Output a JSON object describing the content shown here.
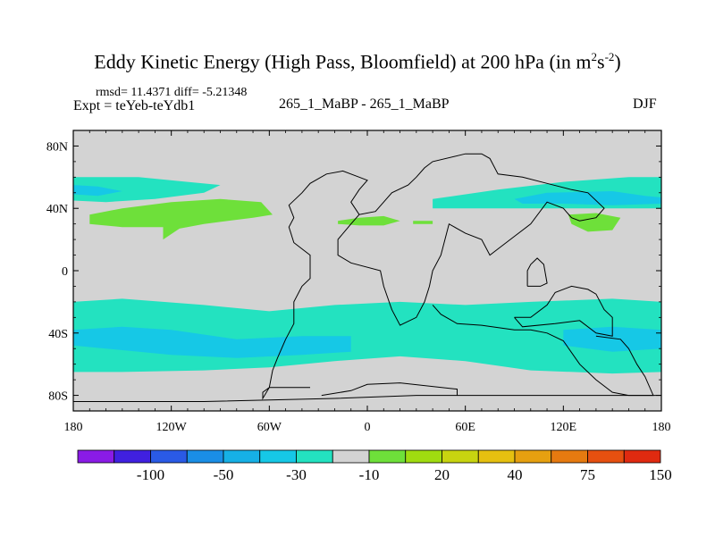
{
  "header": {
    "title_main": "Eddy Kinetic Energy (High Pass, Bloomfield) at 200 hPa (in m",
    "title_sup1": "2",
    "title_s": "s",
    "title_sup2": "-2",
    "title_close": ")",
    "rmsd_line": "rmsd= 11.4371 diff= -5.21348",
    "expt_line": "Expt = teYeb-teYdb1",
    "center_label": "265_1_MaBP - 265_1_MaBP",
    "season": "DJF"
  },
  "colors": {
    "background_field": "#d3d3d3",
    "green": "#6ee03a",
    "cyan": "#23e2c0",
    "light_blue": "#16c8e6",
    "coast": "#000000"
  },
  "chart_data": {
    "type": "heatmap",
    "projection": "cylindrical equidistant",
    "xlim": [
      -180,
      180
    ],
    "ylim": [
      -90,
      90
    ],
    "x_ticks": [
      {
        "value": -180,
        "label": "180"
      },
      {
        "value": -120,
        "label": "120W"
      },
      {
        "value": -60,
        "label": "60W"
      },
      {
        "value": 0,
        "label": "0"
      },
      {
        "value": 60,
        "label": "60E"
      },
      {
        "value": 120,
        "label": "120E"
      },
      {
        "value": 180,
        "label": "180"
      }
    ],
    "y_ticks": [
      {
        "value": 80,
        "label": "80N"
      },
      {
        "value": 40,
        "label": "40N"
      },
      {
        "value": 0,
        "label": "0"
      },
      {
        "value": -40,
        "label": "40S"
      },
      {
        "value": -80,
        "label": "80S"
      }
    ],
    "colorbar": {
      "colors": [
        "#8a1be6",
        "#4020e0",
        "#2a5ae6",
        "#1a8ee6",
        "#16b0e6",
        "#16c8e6",
        "#23e2c0",
        "#d3d3d3",
        "#6ee03a",
        "#a0dc10",
        "#c8d410",
        "#e6c010",
        "#e6a010",
        "#e67a10",
        "#e65010",
        "#e02a10"
      ],
      "labels": [
        {
          "index": 2,
          "text": "-100"
        },
        {
          "index": 4,
          "text": "-50"
        },
        {
          "index": 6,
          "text": "-30"
        },
        {
          "index": 8,
          "text": "-10"
        },
        {
          "index": 10,
          "text": "20"
        },
        {
          "index": 12,
          "text": "40"
        },
        {
          "index": 14,
          "text": "75"
        },
        {
          "index": 16,
          "text": "150"
        }
      ]
    },
    "regions": [
      {
        "level": "-10",
        "color": "cyan",
        "points": [
          [
            -180,
            -20
          ],
          [
            -150,
            -18
          ],
          [
            -100,
            -22
          ],
          [
            -60,
            -26
          ],
          [
            -20,
            -22
          ],
          [
            20,
            -20
          ],
          [
            60,
            -22
          ],
          [
            100,
            -20
          ],
          [
            150,
            -18
          ],
          [
            180,
            -20
          ],
          [
            180,
            -65
          ],
          [
            150,
            -66
          ],
          [
            100,
            -64
          ],
          [
            60,
            -58
          ],
          [
            20,
            -55
          ],
          [
            -20,
            -58
          ],
          [
            -60,
            -62
          ],
          [
            -100,
            -64
          ],
          [
            -150,
            -65
          ],
          [
            -180,
            -65
          ]
        ]
      },
      {
        "level": "-20",
        "color": "light_blue",
        "points": [
          [
            -180,
            -38
          ],
          [
            -150,
            -36
          ],
          [
            -120,
            -38
          ],
          [
            -80,
            -44
          ],
          [
            -40,
            -42
          ],
          [
            -10,
            -42
          ],
          [
            -10,
            -52
          ],
          [
            -40,
            -54
          ],
          [
            -80,
            -56
          ],
          [
            -120,
            -54
          ],
          [
            -160,
            -50
          ],
          [
            -180,
            -48
          ]
        ]
      },
      {
        "level": "-20",
        "color": "light_blue",
        "points": [
          [
            120,
            -38
          ],
          [
            150,
            -36
          ],
          [
            180,
            -38
          ],
          [
            180,
            -50
          ],
          [
            150,
            -52
          ],
          [
            120,
            -48
          ]
        ]
      },
      {
        "level": "-10",
        "color": "cyan",
        "points": [
          [
            -180,
            60
          ],
          [
            -140,
            60
          ],
          [
            -110,
            57
          ],
          [
            -90,
            55
          ],
          [
            -100,
            50
          ],
          [
            -130,
            46
          ],
          [
            -160,
            44
          ],
          [
            -180,
            45
          ]
        ]
      },
      {
        "level": "-20",
        "color": "light_blue",
        "points": [
          [
            -180,
            55
          ],
          [
            -165,
            54
          ],
          [
            -150,
            51
          ],
          [
            -165,
            48
          ],
          [
            -180,
            49
          ]
        ]
      },
      {
        "level": "-10",
        "color": "cyan",
        "points": [
          [
            40,
            46
          ],
          [
            80,
            52
          ],
          [
            120,
            57
          ],
          [
            160,
            60
          ],
          [
            180,
            60
          ],
          [
            180,
            40
          ],
          [
            160,
            40
          ],
          [
            120,
            40
          ],
          [
            80,
            40
          ],
          [
            40,
            40
          ]
        ]
      },
      {
        "level": "-20",
        "color": "light_blue",
        "points": [
          [
            90,
            46
          ],
          [
            110,
            50
          ],
          [
            150,
            51
          ],
          [
            170,
            48
          ],
          [
            180,
            47
          ],
          [
            180,
            43
          ],
          [
            150,
            42
          ],
          [
            120,
            43
          ],
          [
            95,
            43
          ]
        ]
      },
      {
        "level": "10",
        "color": "green",
        "points": [
          [
            -170,
            36
          ],
          [
            -150,
            40
          ],
          [
            -120,
            44
          ],
          [
            -90,
            46
          ],
          [
            -65,
            44
          ],
          [
            -58,
            36
          ],
          [
            -70,
            34
          ],
          [
            -100,
            30
          ],
          [
            -115,
            27
          ],
          [
            -125,
            20
          ],
          [
            -125,
            28
          ],
          [
            -150,
            28
          ],
          [
            -170,
            30
          ]
        ]
      },
      {
        "level": "10",
        "color": "green",
        "points": [
          [
            -18,
            32
          ],
          [
            -5,
            34
          ],
          [
            10,
            35
          ],
          [
            20,
            32
          ],
          [
            10,
            29
          ],
          [
            -5,
            29
          ],
          [
            -18,
            30
          ]
        ]
      },
      {
        "level": "10",
        "color": "green",
        "points": [
          [
            28,
            32
          ],
          [
            40,
            32
          ],
          [
            40,
            30
          ],
          [
            28,
            30
          ]
        ]
      },
      {
        "level": "10",
        "color": "green",
        "points": [
          [
            123,
            36
          ],
          [
            140,
            37
          ],
          [
            155,
            34
          ],
          [
            150,
            26
          ],
          [
            135,
            25
          ],
          [
            125,
            30
          ]
        ]
      }
    ],
    "coastlines": [
      [
        [
          -35,
          -75
        ],
        [
          -60,
          -75
        ],
        [
          -64,
          -82
        ],
        [
          -64,
          -78
        ],
        [
          -60,
          -75
        ],
        [
          -58,
          -64
        ],
        [
          -55,
          -56
        ],
        [
          -50,
          -44
        ],
        [
          -45,
          -34
        ],
        [
          -45,
          -20
        ],
        [
          -40,
          -10
        ],
        [
          -35,
          -5
        ],
        [
          -35,
          10
        ],
        [
          -45,
          18
        ],
        [
          -48,
          28
        ],
        [
          -45,
          34
        ],
        [
          -48,
          42
        ],
        [
          -40,
          50
        ],
        [
          -35,
          56
        ],
        [
          -25,
          62
        ],
        [
          -15,
          64
        ],
        [
          -5,
          60
        ],
        [
          0,
          58
        ],
        [
          -5,
          52
        ],
        [
          -10,
          44
        ],
        [
          -5,
          36
        ],
        [
          5,
          38
        ],
        [
          10,
          44
        ],
        [
          15,
          50
        ],
        [
          25,
          55
        ],
        [
          30,
          60
        ],
        [
          35,
          66
        ],
        [
          40,
          70
        ],
        [
          60,
          75
        ],
        [
          70,
          75
        ],
        [
          75,
          72
        ],
        [
          80,
          62
        ],
        [
          95,
          60
        ],
        [
          110,
          56
        ],
        [
          125,
          52
        ],
        [
          135,
          50
        ],
        [
          145,
          40
        ],
        [
          140,
          34
        ],
        [
          130,
          32
        ],
        [
          125,
          34
        ],
        [
          120,
          40
        ],
        [
          110,
          44
        ],
        [
          100,
          30
        ],
        [
          90,
          22
        ],
        [
          80,
          14
        ],
        [
          75,
          10
        ],
        [
          70,
          20
        ],
        [
          60,
          24
        ],
        [
          50,
          30
        ],
        [
          45,
          10
        ],
        [
          40,
          0
        ],
        [
          38,
          -10
        ],
        [
          35,
          -20
        ],
        [
          30,
          -30
        ],
        [
          20,
          -35
        ],
        [
          15,
          -25
        ],
        [
          10,
          -10
        ],
        [
          8,
          0
        ],
        [
          -10,
          5
        ],
        [
          -18,
          10
        ],
        [
          -18,
          20
        ],
        [
          -10,
          30
        ],
        [
          -5,
          36
        ]
      ],
      [
        [
          98,
          -10
        ],
        [
          98,
          0
        ],
        [
          100,
          4
        ],
        [
          104,
          8
        ],
        [
          108,
          4
        ],
        [
          110,
          -8
        ],
        [
          106,
          -10
        ],
        [
          98,
          -10
        ]
      ],
      [
        [
          90,
          -30
        ],
        [
          100,
          -30
        ],
        [
          110,
          -22
        ],
        [
          115,
          -14
        ],
        [
          125,
          -10
        ],
        [
          135,
          -12
        ],
        [
          140,
          -15
        ],
        [
          145,
          -25
        ],
        [
          150,
          -30
        ],
        [
          150,
          -42
        ],
        [
          140,
          -40
        ],
        [
          130,
          -32
        ],
        [
          115,
          -34
        ],
        [
          95,
          -36
        ],
        [
          90,
          -30
        ]
      ],
      [
        [
          140,
          -42
        ],
        [
          155,
          -44
        ],
        [
          160,
          -50
        ],
        [
          165,
          -60
        ],
        [
          170,
          -68
        ],
        [
          175,
          -80
        ],
        [
          160,
          -80
        ],
        [
          150,
          -78
        ],
        [
          140,
          -70
        ],
        [
          130,
          -60
        ],
        [
          120,
          -45
        ],
        [
          110,
          -40
        ],
        [
          100,
          -38
        ],
        [
          90,
          -38
        ],
        [
          70,
          -35
        ],
        [
          55,
          -34
        ],
        [
          45,
          -28
        ],
        [
          40,
          -22
        ]
      ],
      [
        [
          -180,
          -84
        ],
        [
          -100,
          -84
        ],
        [
          -20,
          -82
        ],
        [
          30,
          -80
        ],
        [
          70,
          -80
        ],
        [
          160,
          -80
        ],
        [
          175,
          -80
        ],
        [
          180,
          -80
        ]
      ],
      [
        [
          -28,
          -80
        ],
        [
          -10,
          -77
        ],
        [
          0,
          -73
        ],
        [
          20,
          -72
        ],
        [
          55,
          -76
        ],
        [
          55,
          -80
        ]
      ]
    ]
  },
  "colorbar_labels": [
    "-100",
    "-50",
    "-30",
    "-10",
    "20",
    "40",
    "75",
    "150"
  ]
}
